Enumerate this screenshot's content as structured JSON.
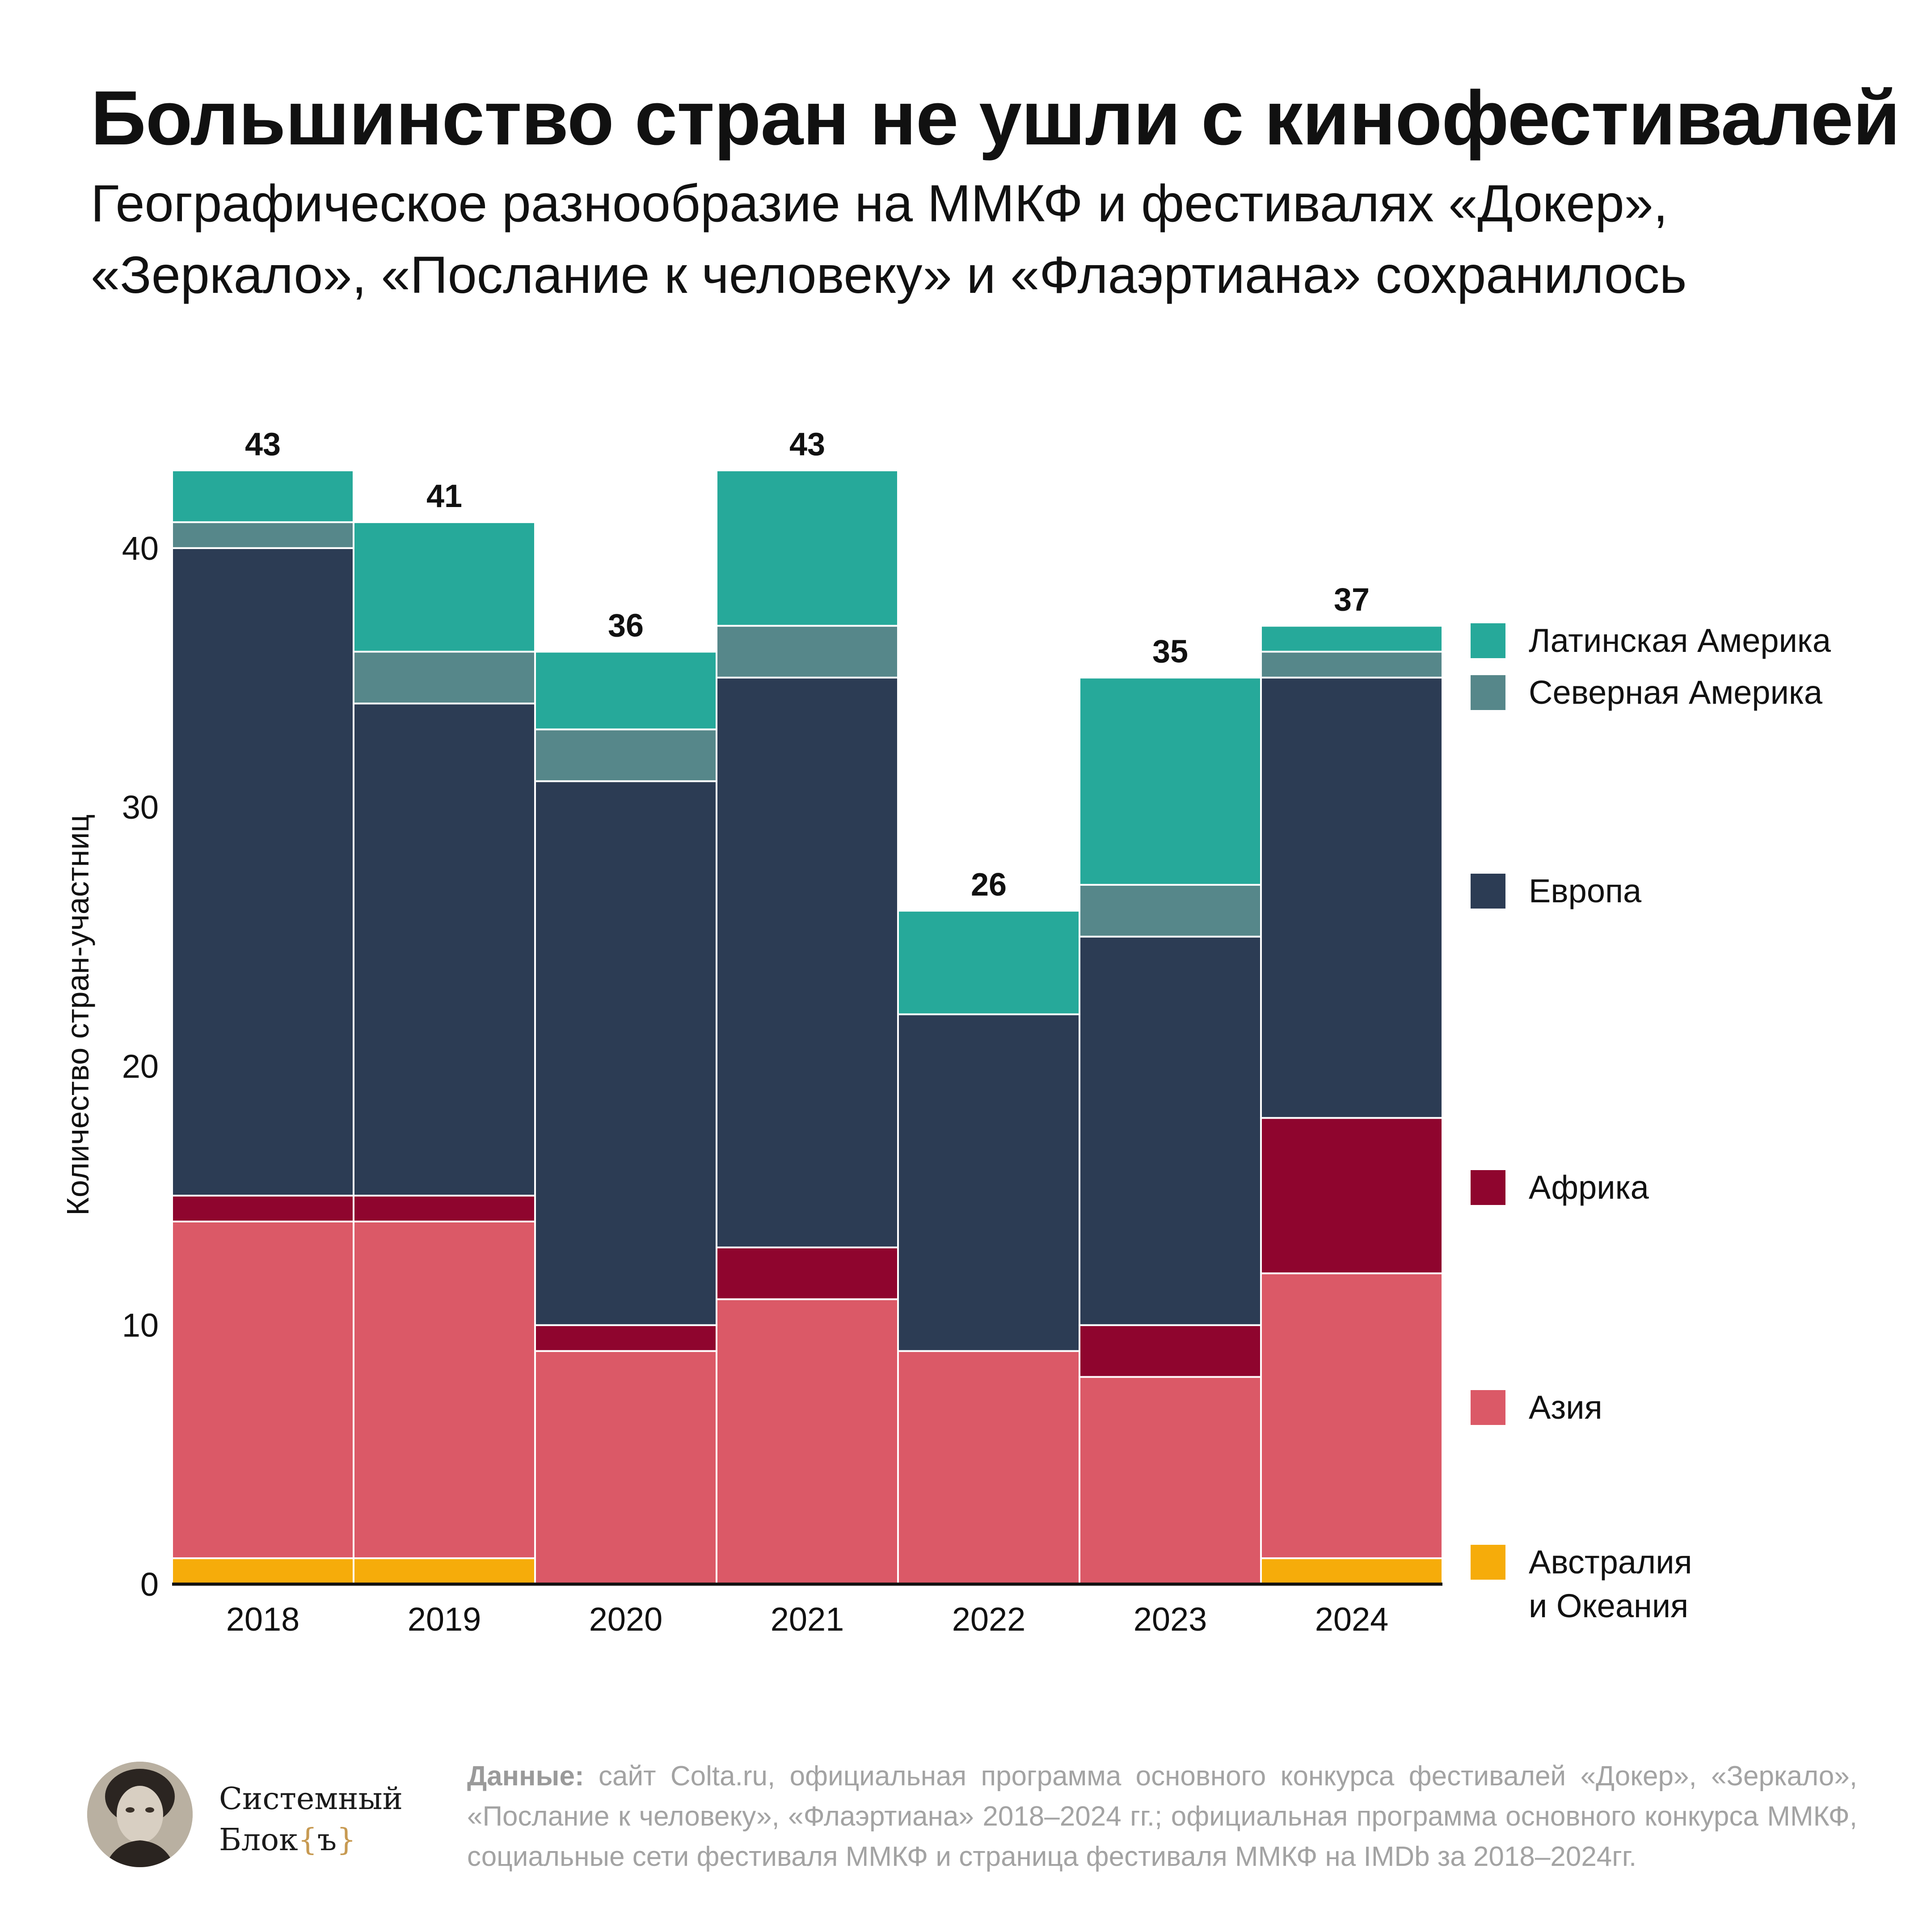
{
  "header": {
    "title": "Большинство стран не ушли с кинофестивалей",
    "subtitle": "Географическое разнообразие на ММКФ и фестивалях «Докер», «Зеркало», «Послание к человеку» и «Флаэртиана» сохранилось"
  },
  "chart_data": {
    "type": "bar",
    "stacked": true,
    "title": "Большинство стран не ушли с кинофестивалей",
    "subtitle": "Географическое разнообразие на ММКФ и фестивалях «Докер», «Зеркало», «Послание к человеку» и «Флаэртиана» сохранилось",
    "xlabel": "",
    "ylabel": "Количество стран-участниц",
    "ylim": [
      0,
      43
    ],
    "yticks": [
      0,
      10,
      20,
      30,
      40
    ],
    "categories": [
      "2018",
      "2019",
      "2020",
      "2021",
      "2022",
      "2023",
      "2024"
    ],
    "totals": [
      43,
      41,
      36,
      43,
      26,
      35,
      37
    ],
    "legend_position": "right",
    "grid": false,
    "series": [
      {
        "name": "Австралия и Океания",
        "legend_lines": [
          "Австралия",
          "и Океания"
        ],
        "color": "#f6ac0a",
        "values": [
          1,
          1,
          0,
          0,
          0,
          0,
          1
        ]
      },
      {
        "name": "Азия",
        "legend_lines": [
          "Азия"
        ],
        "color": "#db5967",
        "values": [
          13,
          13,
          9,
          11,
          9,
          8,
          11
        ]
      },
      {
        "name": "Африка",
        "legend_lines": [
          "Африка"
        ],
        "color": "#8f052e",
        "values": [
          1,
          1,
          1,
          2,
          0,
          2,
          6
        ]
      },
      {
        "name": "Европа",
        "legend_lines": [
          "Европа"
        ],
        "color": "#2c3c54",
        "values": [
          25,
          19,
          21,
          22,
          13,
          15,
          17
        ]
      },
      {
        "name": "Северная Америка",
        "legend_lines": [
          "Северная Америка"
        ],
        "color": "#56878a",
        "values": [
          1,
          2,
          2,
          2,
          0,
          2,
          1
        ]
      },
      {
        "name": "Латинская Америка",
        "legend_lines": [
          "Латинская Америка"
        ],
        "color": "#26a99a",
        "values": [
          2,
          5,
          3,
          6,
          4,
          8,
          1
        ]
      }
    ]
  },
  "footer": {
    "brand_line1": "Системный",
    "brand_line2": "Блок",
    "brand_brace_open": "{",
    "brand_sign": "ъ",
    "brand_brace_close": "}",
    "source_label": "Данные:",
    "source_text": " сайт Colta.ru, официальная программа основного конкурса фестивалей «Докер», «Зеркало», «Послание к человеку», «Флаэртиана» 2018–2024 гг.; официальная программа основного конкурса ММКФ, социальные сети фестиваля ММКФ и страница фестиваля ММКФ на IMDb за 2018–2024гг."
  }
}
